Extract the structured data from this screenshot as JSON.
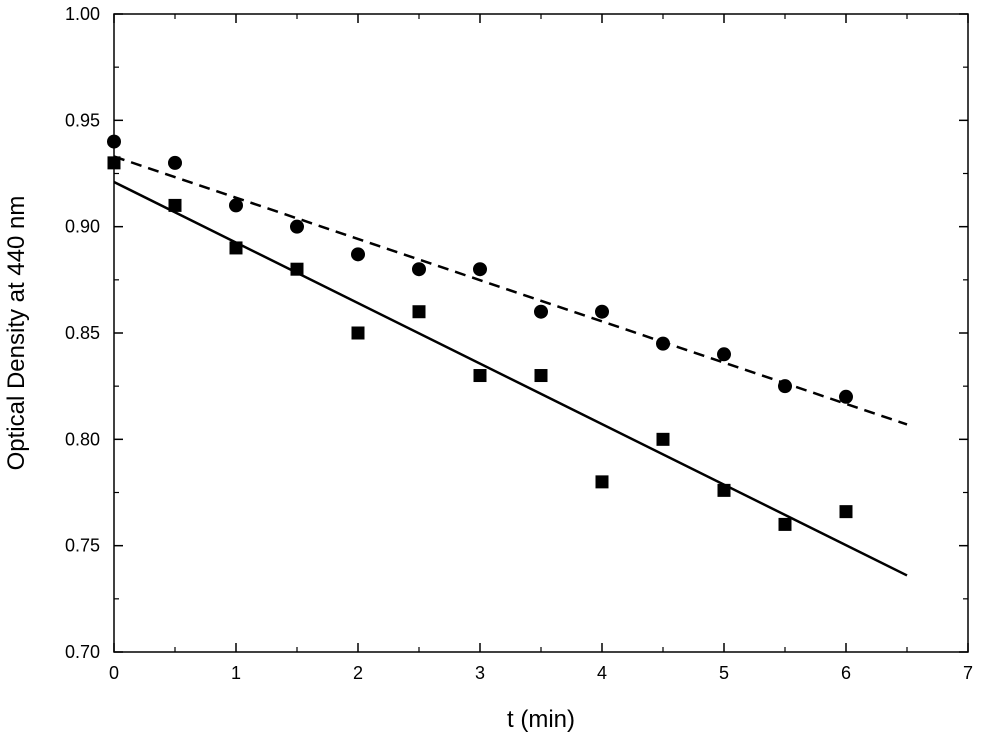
{
  "chart_data": {
    "type": "scatter",
    "title": "",
    "xlabel": "t (min)",
    "ylabel": "Optical Density at 440 nm",
    "xlim": [
      0,
      7
    ],
    "ylim": [
      0.7,
      1.0
    ],
    "x_ticks": [
      "0",
      "1",
      "2",
      "3",
      "4",
      "5",
      "6",
      "7"
    ],
    "y_ticks": [
      "0.70",
      "0.75",
      "0.80",
      "0.85",
      "0.90",
      "0.95",
      "1.00"
    ],
    "grid": false,
    "legend": "none",
    "series": [
      {
        "marker": "circle",
        "color": "#000000",
        "x": [
          0,
          0.5,
          1,
          1.5,
          2,
          2.5,
          3,
          3.5,
          4,
          4.5,
          5,
          5.5,
          6
        ],
        "y": [
          0.94,
          0.93,
          0.91,
          0.9,
          0.887,
          0.88,
          0.88,
          0.86,
          0.86,
          0.845,
          0.84,
          0.825,
          0.82
        ]
      },
      {
        "marker": "square",
        "color": "#000000",
        "x": [
          0,
          0.5,
          1,
          1.5,
          2,
          2.5,
          3,
          3.5,
          4,
          4.5,
          5,
          5.5,
          6
        ],
        "y": [
          0.93,
          0.91,
          0.89,
          0.88,
          0.85,
          0.86,
          0.83,
          0.83,
          0.78,
          0.8,
          0.776,
          0.76,
          0.766
        ]
      }
    ],
    "fit_lines": [
      {
        "style": "dashed",
        "x": [
          0,
          6.5
        ],
        "y": [
          0.933,
          0.807
        ]
      },
      {
        "style": "solid",
        "x": [
          0,
          6.5
        ],
        "y": [
          0.921,
          0.736
        ]
      }
    ]
  }
}
